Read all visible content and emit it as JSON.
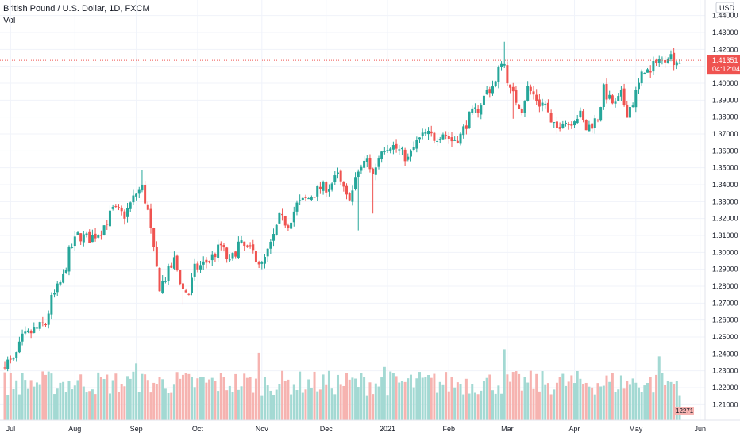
{
  "header": {
    "title": "British Pound / U.S. Dollar, 1D, FXCM",
    "sub": "Vol"
  },
  "price_axis": {
    "currency": "USD",
    "last_price": "1.41351",
    "countdown": "04:12:04",
    "volume_tag": "12271"
  },
  "colors": {
    "up": "#26a69a",
    "down": "#ef5350",
    "up_vol": "#a3d9d3",
    "down_vol": "#f6b3b0",
    "grid": "#f0f3fa",
    "price_line": "#ef5350"
  },
  "chart_data": {
    "type": "candlestick",
    "title": "British Pound / U.S. Dollar, 1D, FXCM",
    "ylim": [
      1.205,
      1.445
    ],
    "y_ticks": [
      "1.44000",
      "1.43000",
      "1.42000",
      "1.41000",
      "1.40000",
      "1.39000",
      "1.38000",
      "1.37000",
      "1.36000",
      "1.35000",
      "1.34000",
      "1.33000",
      "1.32000",
      "1.31000",
      "1.30000",
      "1.29000",
      "1.28000",
      "1.27000",
      "1.26000",
      "1.25000",
      "1.24000",
      "1.23000",
      "1.22000",
      "1.21000"
    ],
    "x_ticks": [
      {
        "label": "Jul",
        "index": 2
      },
      {
        "label": "Aug",
        "index": 24
      },
      {
        "label": "Sep",
        "index": 45
      },
      {
        "label": "Oct",
        "index": 66
      },
      {
        "label": "Nov",
        "index": 88
      },
      {
        "label": "Dec",
        "index": 110
      },
      {
        "label": "2021",
        "index": 131
      },
      {
        "label": "Feb",
        "index": 152
      },
      {
        "label": "Mar",
        "index": 172
      },
      {
        "label": "Apr",
        "index": 195
      },
      {
        "label": "May",
        "index": 216
      },
      {
        "label": "Jun",
        "index": 238
      }
    ],
    "close_anchors": [
      [
        0,
        1.235
      ],
      [
        3,
        1.235
      ],
      [
        6,
        1.249
      ],
      [
        10,
        1.254
      ],
      [
        14,
        1.258
      ],
      [
        16,
        1.272
      ],
      [
        20,
        1.285
      ],
      [
        22,
        1.3
      ],
      [
        25,
        1.31
      ],
      [
        29,
        1.308
      ],
      [
        33,
        1.313
      ],
      [
        37,
        1.325
      ],
      [
        41,
        1.322
      ],
      [
        45,
        1.335
      ],
      [
        47,
        1.338
      ],
      [
        49,
        1.324
      ],
      [
        51,
        1.3
      ],
      [
        53,
        1.28
      ],
      [
        55,
        1.285
      ],
      [
        58,
        1.295
      ],
      [
        61,
        1.278
      ],
      [
        63,
        1.276
      ],
      [
        65,
        1.29
      ],
      [
        68,
        1.293
      ],
      [
        71,
        1.297
      ],
      [
        74,
        1.304
      ],
      [
        77,
        1.293
      ],
      [
        80,
        1.305
      ],
      [
        83,
        1.302
      ],
      [
        85,
        1.3
      ],
      [
        88,
        1.292
      ],
      [
        91,
        1.304
      ],
      [
        94,
        1.32
      ],
      [
        97,
        1.317
      ],
      [
        100,
        1.328
      ],
      [
        104,
        1.332
      ],
      [
        108,
        1.338
      ],
      [
        111,
        1.339
      ],
      [
        114,
        1.345
      ],
      [
        117,
        1.332
      ],
      [
        119,
        1.336
      ],
      [
        121,
        1.348
      ],
      [
        124,
        1.355
      ],
      [
        126,
        1.346
      ],
      [
        129,
        1.362
      ],
      [
        132,
        1.364
      ],
      [
        135,
        1.36
      ],
      [
        138,
        1.355
      ],
      [
        141,
        1.365
      ],
      [
        144,
        1.37
      ],
      [
        147,
        1.368
      ],
      [
        150,
        1.371
      ],
      [
        153,
        1.366
      ],
      [
        156,
        1.369
      ],
      [
        159,
        1.38
      ],
      [
        162,
        1.385
      ],
      [
        165,
        1.395
      ],
      [
        168,
        1.4
      ],
      [
        170,
        1.414
      ],
      [
        171,
        1.411
      ],
      [
        173,
        1.395
      ],
      [
        175,
        1.39
      ],
      [
        177,
        1.385
      ],
      [
        179,
        1.397
      ],
      [
        181,
        1.393
      ],
      [
        183,
        1.388
      ],
      [
        185,
        1.388
      ],
      [
        187,
        1.375
      ],
      [
        189,
        1.373
      ],
      [
        191,
        1.379
      ],
      [
        193,
        1.376
      ],
      [
        195,
        1.38
      ],
      [
        197,
        1.381
      ],
      [
        199,
        1.373
      ],
      [
        201,
        1.376
      ],
      [
        203,
        1.38
      ],
      [
        205,
        1.396
      ],
      [
        207,
        1.39
      ],
      [
        209,
        1.387
      ],
      [
        211,
        1.393
      ],
      [
        213,
        1.383
      ],
      [
        215,
        1.389
      ],
      [
        217,
        1.399
      ],
      [
        219,
        1.409
      ],
      [
        221,
        1.405
      ],
      [
        223,
        1.415
      ],
      [
        225,
        1.413
      ],
      [
        227,
        1.418
      ],
      [
        229,
        1.414
      ],
      [
        230,
        1.4135
      ]
    ],
    "volume_note": "relative daily volume bars, scaled to pane height"
  }
}
